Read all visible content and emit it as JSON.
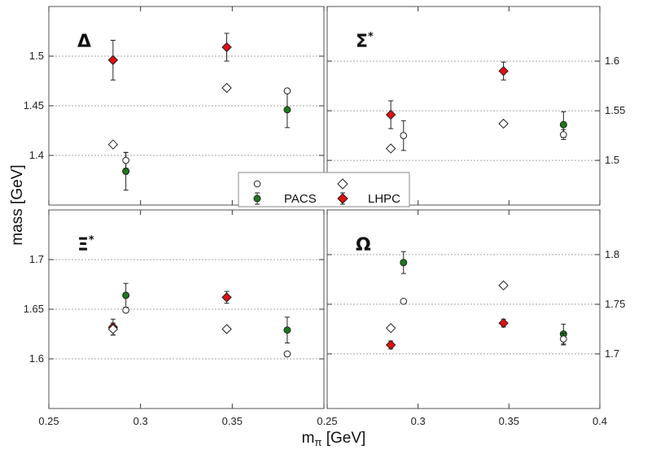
{
  "figure": {
    "ylabel": "mass [GeV]",
    "xlabel": "mπ [GeV]",
    "xlabel_main": "m",
    "xlabel_sub": "π",
    "xlabel_unit": " [GeV]",
    "legend": {
      "series": [
        "PACS",
        "LHPC"
      ],
      "placement": "center"
    }
  },
  "chart_data": [
    {
      "type": "scatter",
      "title": "Δ",
      "title_sup": "",
      "xlim": [
        0.25,
        0.4
      ],
      "ylim": [
        1.35,
        1.55
      ],
      "x_ticks": [
        "0.25",
        "0.3",
        "0.35"
      ],
      "y_ticks": [
        1.4,
        1.45,
        1.5
      ],
      "y_axis_side": "left",
      "grid": "horizontal",
      "series": [
        {
          "name": "PACS",
          "marker": "circle",
          "color": "#1a7a1a",
          "open": false,
          "points": [
            {
              "x": 0.292,
              "y": 1.384,
              "err": 0.019
            },
            {
              "x": 0.38,
              "y": 1.446,
              "err": 0.018
            }
          ]
        },
        {
          "name": "PACS",
          "marker": "circle",
          "color": "#ffffff",
          "open": true,
          "points": [
            {
              "x": 0.292,
              "y": 1.395,
              "err": 0.008
            },
            {
              "x": 0.38,
              "y": 1.465,
              "err": 0
            }
          ]
        },
        {
          "name": "LHPC",
          "marker": "diamond",
          "color": "#e01010",
          "open": false,
          "points": [
            {
              "x": 0.285,
              "y": 1.496,
              "err": 0.02
            },
            {
              "x": 0.347,
              "y": 1.509,
              "err": 0.014
            }
          ]
        },
        {
          "name": "LHPC",
          "marker": "diamond",
          "color": "#ffffff",
          "open": true,
          "points": [
            {
              "x": 0.285,
              "y": 1.411,
              "err": 0
            },
            {
              "x": 0.347,
              "y": 1.468,
              "err": 0
            }
          ]
        }
      ]
    },
    {
      "type": "scatter",
      "title": "Σ",
      "title_sup": "*",
      "xlim": [
        0.25,
        0.4
      ],
      "ylim": [
        1.455,
        1.655
      ],
      "x_ticks": [
        "0.25",
        "0.3",
        "0.35",
        "0.4"
      ],
      "y_ticks": [
        1.5,
        1.55,
        1.6
      ],
      "y_axis_side": "right",
      "grid": "horizontal",
      "series": [
        {
          "name": "PACS",
          "marker": "circle",
          "color": "#1a7a1a",
          "open": false,
          "points": [
            {
              "x": 0.38,
              "y": 1.536,
              "err": 0.013
            }
          ]
        },
        {
          "name": "PACS",
          "marker": "circle",
          "color": "#ffffff",
          "open": true,
          "points": [
            {
              "x": 0.292,
              "y": 1.525,
              "err": 0.015
            },
            {
              "x": 0.38,
              "y": 1.526,
              "err": 0.005
            }
          ]
        },
        {
          "name": "LHPC",
          "marker": "diamond",
          "color": "#e01010",
          "open": false,
          "points": [
            {
              "x": 0.285,
              "y": 1.546,
              "err": 0.014
            },
            {
              "x": 0.347,
              "y": 1.59,
              "err": 0.009
            }
          ]
        },
        {
          "name": "LHPC",
          "marker": "diamond",
          "color": "#ffffff",
          "open": true,
          "points": [
            {
              "x": 0.285,
              "y": 1.512,
              "err": 0
            },
            {
              "x": 0.347,
              "y": 1.537,
              "err": 0
            }
          ]
        }
      ]
    },
    {
      "type": "scatter",
      "title": "Ξ",
      "title_sup": "*",
      "xlim": [
        0.25,
        0.4
      ],
      "ylim": [
        1.55,
        1.75
      ],
      "x_ticks": [
        "0.25",
        "0.3",
        "0.35"
      ],
      "y_ticks": [
        1.6,
        1.65,
        1.7
      ],
      "y_axis_side": "left",
      "grid": "horizontal",
      "series": [
        {
          "name": "PACS",
          "marker": "circle",
          "color": "#1a7a1a",
          "open": false,
          "points": [
            {
              "x": 0.292,
              "y": 1.664,
              "err": 0.012
            },
            {
              "x": 0.38,
              "y": 1.629,
              "err": 0.013
            }
          ]
        },
        {
          "name": "PACS",
          "marker": "circle",
          "color": "#ffffff",
          "open": true,
          "points": [
            {
              "x": 0.292,
              "y": 1.649,
              "err": 0
            },
            {
              "x": 0.38,
              "y": 1.605,
              "err": 0
            }
          ]
        },
        {
          "name": "LHPC",
          "marker": "diamond",
          "color": "#e01010",
          "open": false,
          "points": [
            {
              "x": 0.285,
              "y": 1.632,
              "err": 0.008
            },
            {
              "x": 0.347,
              "y": 1.662,
              "err": 0.006
            }
          ]
        },
        {
          "name": "LHPC",
          "marker": "diamond",
          "color": "#ffffff",
          "open": true,
          "points": [
            {
              "x": 0.285,
              "y": 1.63,
              "err": 0.006
            },
            {
              "x": 0.347,
              "y": 1.63,
              "err": 0
            }
          ]
        }
      ]
    },
    {
      "type": "scatter",
      "title": "Ω",
      "title_sup": "",
      "xlim": [
        0.25,
        0.4
      ],
      "ylim": [
        1.645,
        1.845
      ],
      "x_ticks": [
        "0.25",
        "0.3",
        "0.35",
        "0.4"
      ],
      "y_ticks": [
        1.7,
        1.75,
        1.8
      ],
      "y_axis_side": "right",
      "grid": "horizontal",
      "series": [
        {
          "name": "PACS",
          "marker": "circle",
          "color": "#1a7a1a",
          "open": false,
          "points": [
            {
              "x": 0.292,
              "y": 1.792,
              "err": 0.011
            },
            {
              "x": 0.38,
              "y": 1.72,
              "err": 0.01
            }
          ]
        },
        {
          "name": "PACS",
          "marker": "circle",
          "color": "#ffffff",
          "open": true,
          "points": [
            {
              "x": 0.292,
              "y": 1.753,
              "err": 0
            },
            {
              "x": 0.38,
              "y": 1.715,
              "err": 0.006
            }
          ]
        },
        {
          "name": "LHPC",
          "marker": "diamond",
          "color": "#e01010",
          "open": false,
          "points": [
            {
              "x": 0.285,
              "y": 1.709,
              "err": 0.004
            },
            {
              "x": 0.347,
              "y": 1.731,
              "err": 0.004
            }
          ]
        },
        {
          "name": "LHPC",
          "marker": "diamond",
          "color": "#ffffff",
          "open": true,
          "points": [
            {
              "x": 0.285,
              "y": 1.726,
              "err": 0
            },
            {
              "x": 0.347,
              "y": 1.769,
              "err": 0
            }
          ]
        }
      ]
    }
  ]
}
